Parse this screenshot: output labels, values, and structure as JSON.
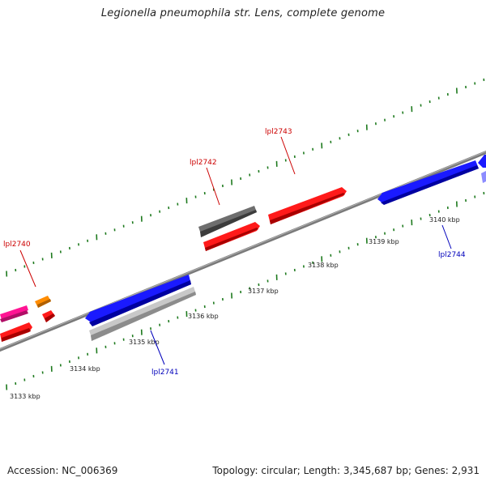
{
  "title": "Legionella pneumophila str. Lens, complete genome",
  "accession": "Accession: NC_006369",
  "topology": "Topology: circular; Length: 3,345,687 bp; Genes: 2,931",
  "colors": {
    "backbone": "#808080",
    "ticks": "#1e7a1e",
    "plus_label": "#cc0000",
    "minus_label": "#0000bb",
    "red": "#ff1a1a",
    "blue": "#1a1aff",
    "gray": "#6e6e6e",
    "light_gray": "#c8c8c8",
    "pink": "#ff1493",
    "orange": "#ff8c00",
    "lavender": "#8c8cff"
  },
  "kbp_labels": [
    "3133 kbp",
    "3134 kbp",
    "3135 kbp",
    "3136 kbp",
    "3137 kbp",
    "3138 kbp",
    "3139 kbp",
    "3140 kbp"
  ],
  "gene_labels": {
    "lpl2740": "lpl2740",
    "lpl2741": "lpl2741",
    "lpl2742": "lpl2742",
    "lpl2743": "lpl2743",
    "lpl2744": "lpl2744"
  }
}
